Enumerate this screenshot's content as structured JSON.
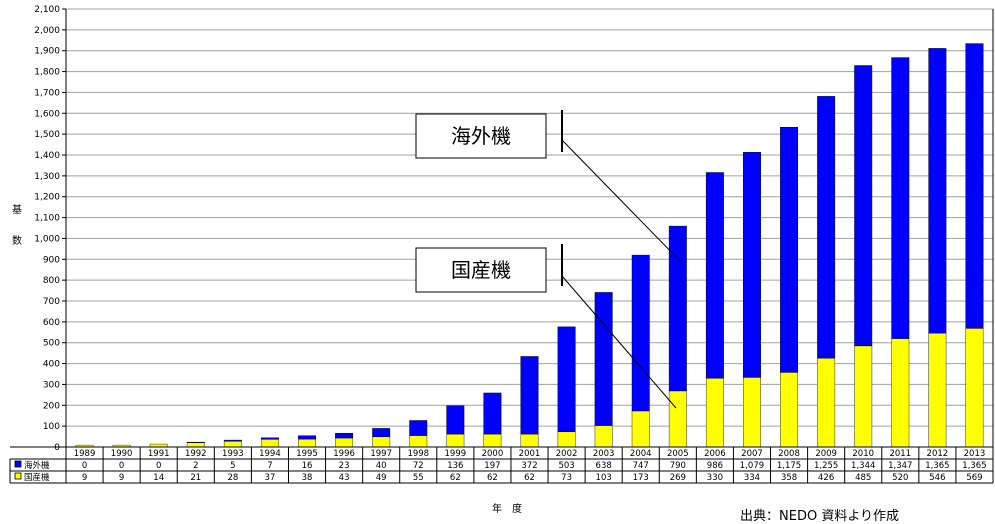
{
  "chart_data": {
    "type": "bar",
    "stacked": true,
    "categories": [
      "1989",
      "1990",
      "1991",
      "1992",
      "1993",
      "1994",
      "1995",
      "1996",
      "1997",
      "1998",
      "1999",
      "2000",
      "2001",
      "2002",
      "2003",
      "2004",
      "2005",
      "2006",
      "2007",
      "2008",
      "2009",
      "2010",
      "2011",
      "2012",
      "2013"
    ],
    "series": [
      {
        "name": "国産機",
        "color": "#ffff00",
        "values": [
          9,
          9,
          14,
          21,
          28,
          37,
          38,
          43,
          49,
          55,
          62,
          62,
          62,
          73,
          103,
          173,
          269,
          330,
          334,
          358,
          426,
          485,
          520,
          546,
          569
        ],
        "labels": [
          "9",
          "9",
          "14",
          "21",
          "28",
          "37",
          "38",
          "43",
          "49",
          "55",
          "62",
          "62",
          "62",
          "73",
          "103",
          "173",
          "269",
          "330",
          "334",
          "358",
          "426",
          "485",
          "520",
          "546",
          "569"
        ]
      },
      {
        "name": "海外機",
        "color": "#0000ff",
        "values": [
          0,
          0,
          0,
          2,
          5,
          7,
          16,
          23,
          40,
          72,
          136,
          197,
          372,
          503,
          638,
          747,
          790,
          986,
          1079,
          1175,
          1255,
          1344,
          1347,
          1365,
          1365
        ],
        "labels": [
          "0",
          "0",
          "0",
          "2",
          "5",
          "7",
          "16",
          "23",
          "40",
          "72",
          "136",
          "197",
          "372",
          "503",
          "638",
          "747",
          "790",
          "986",
          "1,079",
          "1,175",
          "1,255",
          "1,344",
          "1,347",
          "1,365",
          "1,365"
        ]
      }
    ],
    "ylim": [
      0,
      2100
    ],
    "yticks": [
      "0",
      "100",
      "200",
      "300",
      "400",
      "500",
      "600",
      "700",
      "800",
      "900",
      "1,000",
      "1,100",
      "1,200",
      "1,300",
      "1,400",
      "1,500",
      "1,600",
      "1,700",
      "1,800",
      "1,900",
      "2,000",
      "2,100"
    ],
    "ylabel_chars": [
      "基",
      "数"
    ],
    "xlabel": "年　度",
    "grid": true,
    "annotations": [
      "海外機",
      "国産機"
    ],
    "source": "出典：NEDO 資料より作成"
  }
}
